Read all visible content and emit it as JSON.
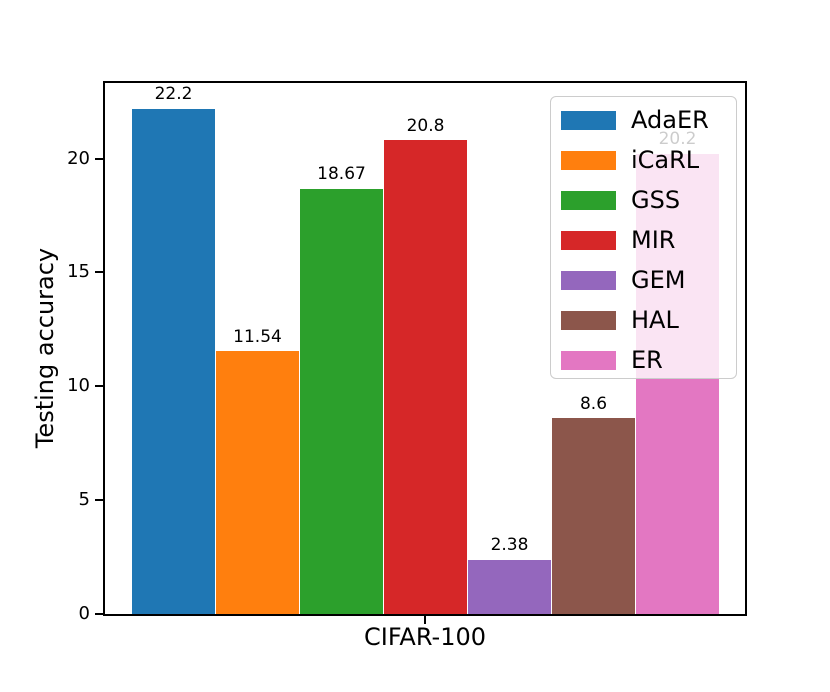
{
  "chart_data": {
    "type": "bar",
    "title": "",
    "xlabel": "CIFAR-100",
    "ylabel": "Testing accuracy",
    "categories": [
      "AdaER",
      "iCaRL",
      "GSS",
      "MIR",
      "GEM",
      "HAL",
      "ER"
    ],
    "values": [
      22.2,
      11.54,
      18.67,
      20.8,
      2.38,
      8.6,
      20.2
    ],
    "bar_value_labels": [
      "22.2",
      "11.54",
      "18.67",
      "20.8",
      "2.38",
      "8.6",
      "20.2"
    ],
    "colors": [
      "#1f77b4",
      "#ff7f0e",
      "#2ca02c",
      "#d62728",
      "#9467bd",
      "#8c564b",
      "#e377c2"
    ],
    "ylim": [
      0,
      23.32
    ],
    "yticks": [
      0,
      5,
      10,
      15,
      20
    ],
    "grid": false,
    "axis_color": "#000000",
    "legend": {
      "location": "upper right",
      "background": "rgba(255,255,255,0.8)",
      "border_color": "#cccccc",
      "labels": [
        "AdaER",
        "iCaRL",
        "GSS",
        "MIR",
        "GEM",
        "HAL",
        "ER"
      ]
    }
  }
}
